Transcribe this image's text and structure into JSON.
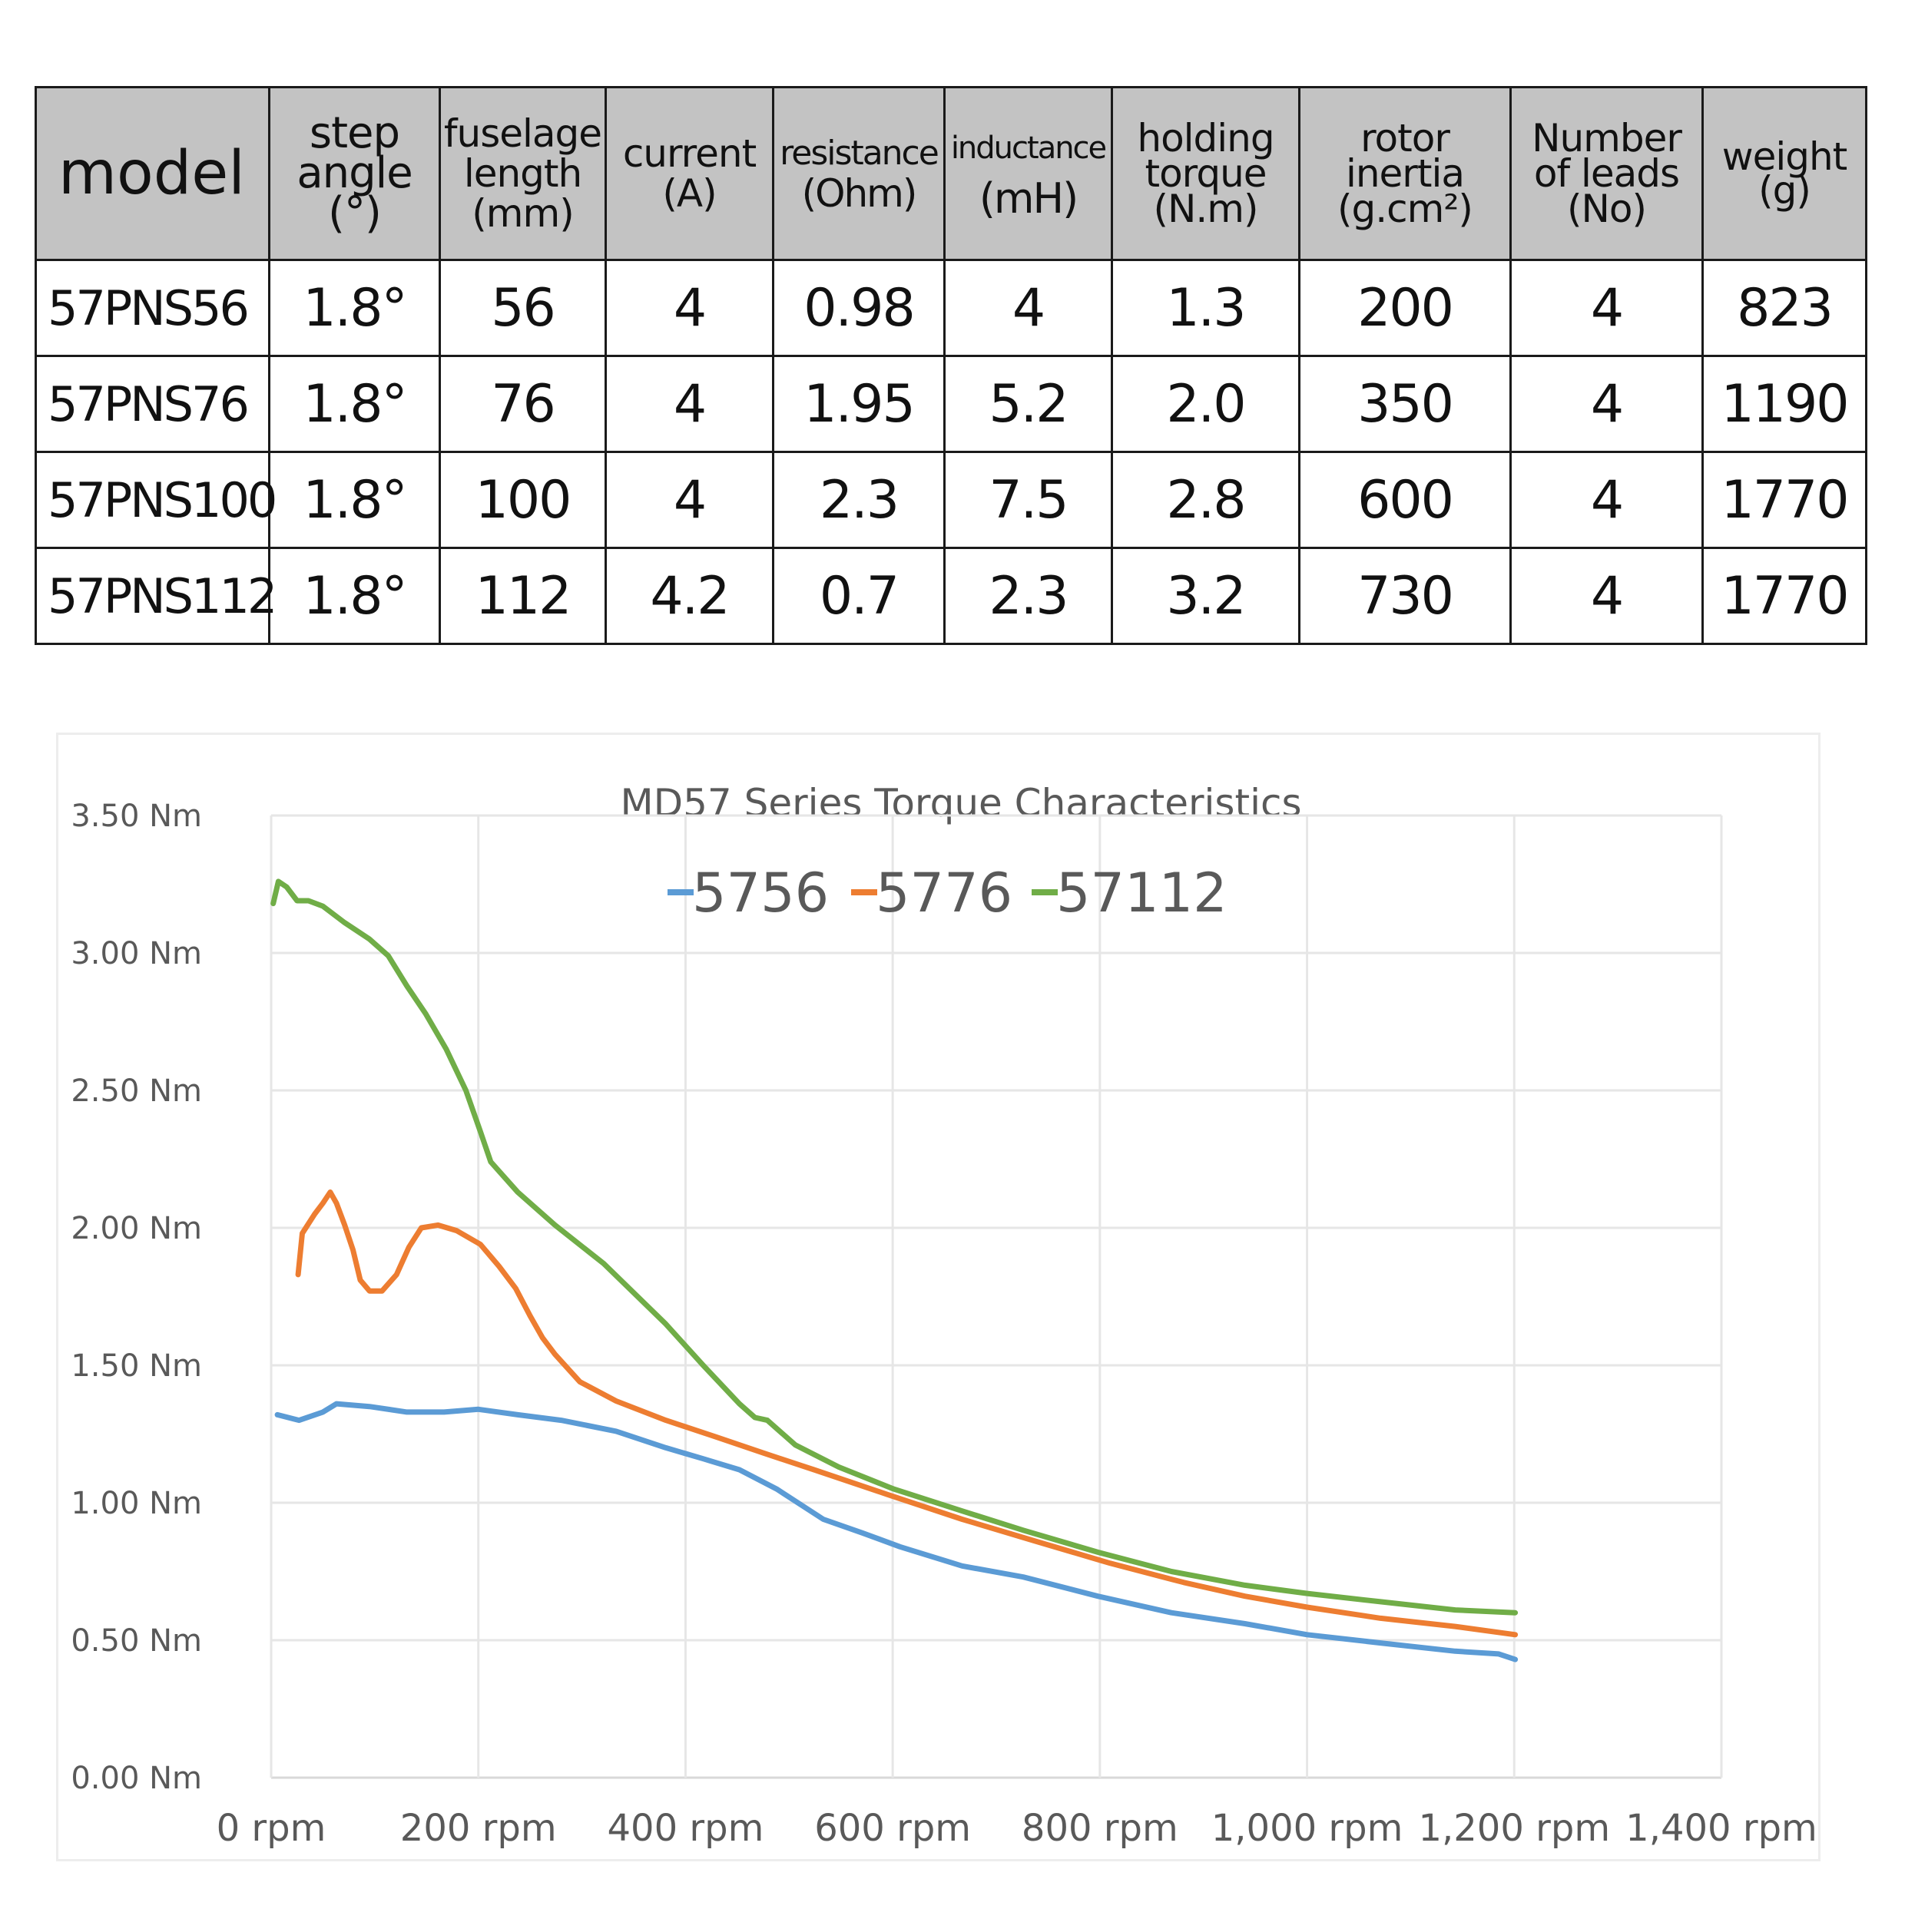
{
  "spec_table": {
    "headers": [
      {
        "key": "model",
        "lines": [
          "model"
        ]
      },
      {
        "key": "step_angle",
        "lines": [
          "step",
          "angle",
          "(°)"
        ]
      },
      {
        "key": "fuselage_length",
        "lines": [
          "fuselage",
          "length",
          "(mm)"
        ]
      },
      {
        "key": "current",
        "lines": [
          "current",
          "(A)"
        ]
      },
      {
        "key": "resistance",
        "lines": [
          "resistance",
          "(Ohm)"
        ]
      },
      {
        "key": "inductance",
        "lines": [
          "inductance",
          "(mH)"
        ]
      },
      {
        "key": "holding_torque",
        "lines": [
          "holding",
          "torque",
          "(N.m)"
        ]
      },
      {
        "key": "rotor_inertia",
        "lines": [
          "rotor",
          "inertia",
          "(g.cm²)"
        ]
      },
      {
        "key": "number_of_leads",
        "lines": [
          "Number",
          "of leads",
          "(No)"
        ]
      },
      {
        "key": "weight",
        "lines": [
          "weight",
          "(g)"
        ]
      }
    ],
    "rows": [
      [
        "57PNS56",
        "1.8°",
        "56",
        "4",
        "0.98",
        "4",
        "1.3",
        "200",
        "4",
        "823"
      ],
      [
        "57PNS76",
        "1.8°",
        "76",
        "4",
        "1.95",
        "5.2",
        "2.0",
        "350",
        "4",
        "1190"
      ],
      [
        "57PNS100",
        "1.8°",
        "100",
        "4",
        "2.3",
        "7.5",
        "2.8",
        "600",
        "4",
        "1770"
      ],
      [
        "57PNS112",
        "1.8°",
        "112",
        "4.2",
        "0.7",
        "2.3",
        "3.2",
        "730",
        "4",
        "1770"
      ]
    ]
  },
  "chart_data": {
    "type": "line",
    "title": "MD57 Series Torque Characteristics",
    "xlabel": "",
    "ylabel": "",
    "xlim": [
      0,
      1400
    ],
    "ylim": [
      0,
      3.5
    ],
    "x_ticks": [
      0,
      200,
      400,
      600,
      800,
      1000,
      1200,
      1400
    ],
    "x_tick_labels": [
      "0 rpm",
      "200 rpm",
      "400 rpm",
      "600 rpm",
      "800 rpm",
      "1,000 rpm",
      "1,200 rpm",
      "1,400 rpm"
    ],
    "y_ticks": [
      0,
      0.5,
      1.0,
      1.5,
      2.0,
      2.5,
      3.0,
      3.5
    ],
    "y_tick_labels": [
      "0.00 Nm",
      "0.50 Nm",
      "1.00 Nm",
      "1.50 Nm",
      "2.00 Nm",
      "2.50 Nm",
      "3.00 Nm",
      "3.50 Nm"
    ],
    "grid": true,
    "legend_position": "top-center",
    "series": [
      {
        "name": "5756",
        "color": "#5B9BD5",
        "x": [
          6,
          27,
          50,
          63,
          95,
          131,
          167,
          200,
          238,
          280,
          333,
          381,
          417,
          452,
          488,
          533,
          571,
          607,
          667,
          726,
          798,
          869,
          940,
          1000,
          1071,
          1143,
          1185,
          1201
        ],
        "y": [
          1.32,
          1.3,
          1.33,
          1.36,
          1.35,
          1.33,
          1.33,
          1.34,
          1.32,
          1.3,
          1.26,
          1.2,
          1.16,
          1.12,
          1.05,
          0.94,
          0.89,
          0.84,
          0.77,
          0.73,
          0.66,
          0.6,
          0.56,
          0.52,
          0.49,
          0.46,
          0.45,
          0.43
        ]
      },
      {
        "name": "5776",
        "color": "#ED7D31",
        "x": [
          26,
          30,
          42,
          50,
          57,
          63,
          71,
          79,
          86,
          95,
          107,
          121,
          133,
          145,
          161,
          179,
          202,
          220,
          236,
          250,
          262,
          274,
          298,
          333,
          381,
          429,
          476,
          524,
          595,
          667,
          738,
          810,
          881,
          940,
          1000,
          1071,
          1143,
          1201
        ],
        "y": [
          1.83,
          1.98,
          2.05,
          2.09,
          2.13,
          2.09,
          2.01,
          1.92,
          1.81,
          1.77,
          1.77,
          1.83,
          1.93,
          2.0,
          2.01,
          1.99,
          1.94,
          1.86,
          1.78,
          1.68,
          1.6,
          1.54,
          1.44,
          1.37,
          1.3,
          1.24,
          1.18,
          1.12,
          1.03,
          0.94,
          0.86,
          0.78,
          0.71,
          0.66,
          0.62,
          0.58,
          0.55,
          0.52
        ]
      },
      {
        "name": "57112",
        "color": "#70AD47",
        "x": [
          2,
          7,
          15,
          25,
          36,
          50,
          71,
          95,
          113,
          131,
          149,
          169,
          188,
          202,
          212,
          238,
          274,
          321,
          381,
          417,
          452,
          467,
          479,
          506,
          548,
          601,
          667,
          726,
          798,
          869,
          940,
          1000,
          1071,
          1143,
          1201
        ],
        "y": [
          3.18,
          3.26,
          3.24,
          3.19,
          3.19,
          3.17,
          3.11,
          3.05,
          2.99,
          2.88,
          2.78,
          2.65,
          2.5,
          2.35,
          2.24,
          2.13,
          2.01,
          1.87,
          1.65,
          1.5,
          1.36,
          1.31,
          1.3,
          1.21,
          1.13,
          1.05,
          0.97,
          0.9,
          0.82,
          0.75,
          0.7,
          0.67,
          0.64,
          0.61,
          0.6
        ]
      }
    ]
  }
}
